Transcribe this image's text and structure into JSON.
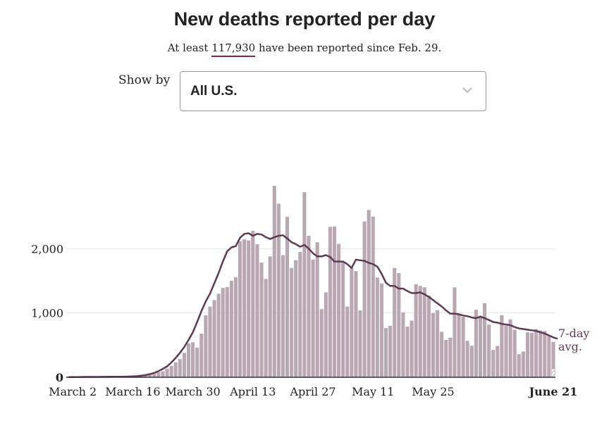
{
  "header": {
    "title": "New deaths reported per day",
    "subtitle_prefix": "At least ",
    "subtitle_count": "117,930",
    "subtitle_suffix": " have been reported since Feb. 29."
  },
  "controls": {
    "show_by_label": "Show by",
    "selected_option": "All U.S.",
    "dropdown_icon": "chevron-down-icon"
  },
  "colors": {
    "bar": "#b9a7b1",
    "line": "#5e3a54",
    "last_bar_hatch": "#b9a7b1",
    "count_underline": "#7a2755"
  },
  "chart_data": {
    "type": "bar",
    "x_start": "March 1",
    "x_end": "June 21",
    "values": [
      0,
      3,
      3,
      7,
      7,
      8,
      6,
      8,
      7,
      8,
      9,
      9,
      9,
      10,
      12,
      16,
      20,
      30,
      38,
      41,
      54,
      76,
      93,
      134,
      177,
      232,
      283,
      379,
      526,
      545,
      460,
      680,
      964,
      1100,
      1200,
      1300,
      1389,
      1404,
      1500,
      1557,
      2117,
      2145,
      2130,
      2279,
      2070,
      1783,
      1530,
      1880,
      2979,
      2700,
      1900,
      2496,
      1700,
      1821,
      1950,
      2880,
      2200,
      1830,
      2100,
      1061,
      1320,
      2340,
      2345,
      2073,
      1802,
      1100,
      1700,
      1650,
      1040,
      2424,
      2602,
      2500,
      1552,
      1460,
      766,
      800,
      1700,
      1620,
      1010,
      789,
      881,
      1448,
      1420,
      1400,
      1270,
      999,
      1044,
      707,
      580,
      616,
      1398,
      975,
      942,
      567,
      490,
      1050,
      960,
      1152,
      820,
      425,
      488,
      966,
      801,
      900,
      740,
      360,
      400,
      700,
      690,
      750,
      728,
      720,
      650,
      550
    ],
    "last_bar_partial_value": 130,
    "avg_values": [
      1,
      2,
      3,
      4,
      5,
      5,
      6,
      6,
      7,
      7,
      8,
      8,
      9,
      10,
      11,
      14,
      18,
      25,
      34,
      48,
      68,
      95,
      130,
      170,
      230,
      300,
      380,
      470,
      580,
      700,
      860,
      1030,
      1180,
      1300,
      1460,
      1620,
      1800,
      1960,
      2020,
      2040,
      2170,
      2230,
      2240,
      2200,
      2230,
      2220,
      2180,
      2150,
      2180,
      2200,
      2210,
      2160,
      2100,
      2070,
      2030,
      2060,
      2000,
      1930,
      1880,
      1880,
      1900,
      1870,
      1800,
      1800,
      1800,
      1760,
      1700,
      1830,
      1820,
      1810,
      1780,
      1760,
      1720,
      1610,
      1470,
      1420,
      1420,
      1380,
      1380,
      1340,
      1310,
      1310,
      1320,
      1290,
      1250,
      1200,
      1150,
      1100,
      1040,
      990,
      990,
      980,
      960,
      950,
      930,
      920,
      940,
      920,
      890,
      860,
      850,
      830,
      820,
      810,
      780,
      760,
      750,
      740,
      730,
      720,
      700,
      680,
      650,
      620,
      600
    ],
    "ylim": [
      0,
      3000
    ],
    "yticks": [
      0,
      1000,
      2000
    ],
    "ytick_labels": [
      "0",
      "1,000",
      "2,000"
    ],
    "xtick_labels": [
      "March 2",
      "March 16",
      "March 30",
      "April 13",
      "April 27",
      "May 11",
      "May 25",
      "June 21"
    ],
    "xtick_index": [
      1,
      15,
      29,
      43,
      57,
      71,
      85,
      112
    ],
    "series": [
      {
        "name": "7-day avg.",
        "label_line1": "7-day",
        "label_line2": "avg."
      }
    ],
    "grid": true,
    "legend": "right-of-line-end"
  }
}
